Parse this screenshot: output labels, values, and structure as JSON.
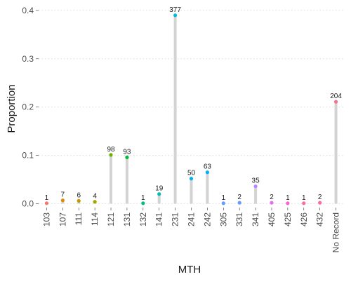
{
  "chart_data": {
    "type": "lollipop",
    "xlabel": "MTH",
    "ylabel": "Proportion",
    "ylim": [
      -0.008,
      0.41
    ],
    "yticks": [
      0.0,
      0.1,
      0.2,
      0.3,
      0.4
    ],
    "ytick_labels": [
      "0.0",
      "0.1",
      "0.2",
      "0.3",
      "0.4"
    ],
    "grid": "horizontal dotted",
    "legend": "none",
    "stem_color": "#d3d3d3",
    "categories": [
      "103",
      "107",
      "111",
      "114",
      "121",
      "131",
      "132",
      "141",
      "231",
      "241",
      "242",
      "305",
      "331",
      "341",
      "405",
      "425",
      "426",
      "432",
      "No Record"
    ],
    "counts": [
      "1",
      "7",
      "6",
      "4",
      "98",
      "93",
      "1",
      "19",
      "377",
      "50",
      "63",
      "1",
      "2",
      "35",
      "2",
      "1",
      "1",
      "2",
      "204"
    ],
    "values": [
      0.001,
      0.007,
      0.006,
      0.004,
      0.101,
      0.096,
      0.001,
      0.02,
      0.39,
      0.052,
      0.065,
      0.001,
      0.002,
      0.036,
      0.002,
      0.001,
      0.001,
      0.002,
      0.211
    ],
    "colors": [
      "#F8766D",
      "#E58700",
      "#C99800",
      "#A3A500",
      "#6BB100",
      "#00BA38",
      "#00BF7D",
      "#00C0AF",
      "#00BCD8",
      "#00B0F6",
      "#00B0F6",
      "#619CFF",
      "#619CFF",
      "#B983FF",
      "#E76BF3",
      "#FD61D1",
      "#FF67A4",
      "#FF67A4",
      "#FF6C90"
    ]
  }
}
